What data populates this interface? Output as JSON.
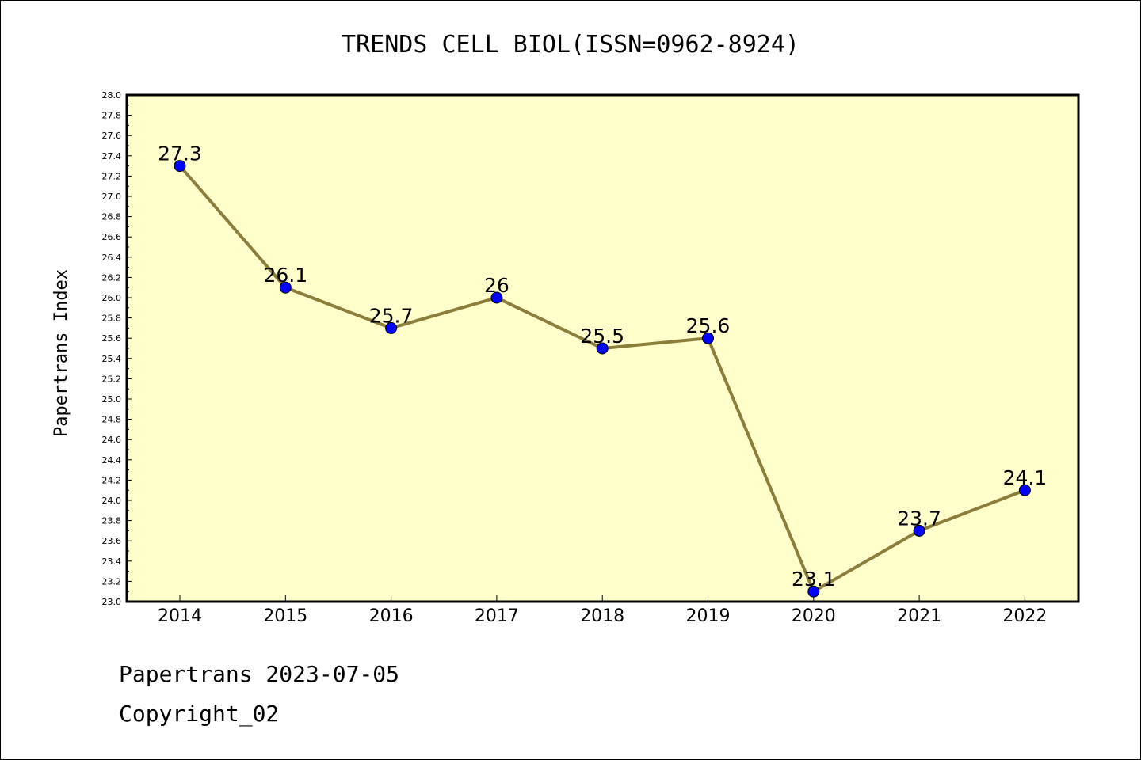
{
  "chart_data": {
    "type": "line",
    "title": "TRENDS CELL BIOL(ISSN=0962-8924)",
    "xlabel": "",
    "ylabel": "Papertrans Index",
    "categories": [
      "2014",
      "2015",
      "2016",
      "2017",
      "2018",
      "2019",
      "2020",
      "2021",
      "2022"
    ],
    "series": [
      {
        "values": [
          27.3,
          26.1,
          25.7,
          26.0,
          25.5,
          25.6,
          23.1,
          23.7,
          24.1
        ],
        "labels": [
          "27.3",
          "26.1",
          "25.7",
          "26",
          "25.5",
          "25.6",
          "23.1",
          "23.7",
          "24.1"
        ]
      }
    ],
    "ylim": [
      23.0,
      28.0
    ],
    "ytick_step": 0.2,
    "grid": false,
    "legend": "none",
    "colors": {
      "plot_background": "#ffffcc",
      "line": "#8b7d3a",
      "marker": "#0000ff"
    }
  },
  "footer": {
    "line1": "Papertrans 2023-07-05",
    "line2": "Copyright_02"
  }
}
